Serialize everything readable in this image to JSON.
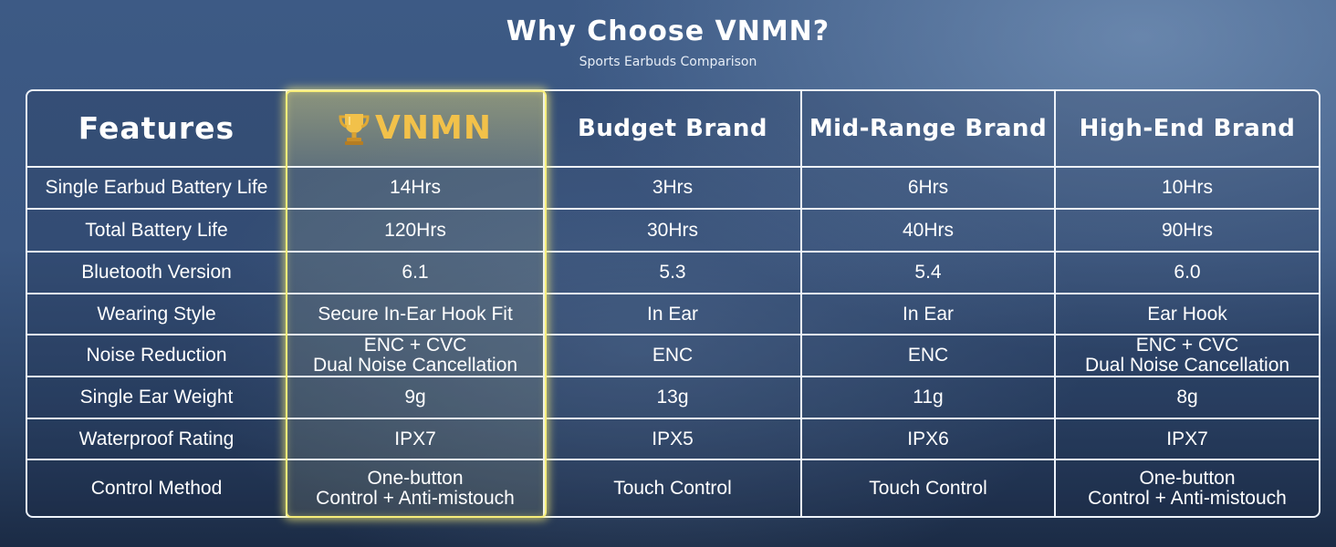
{
  "header": {
    "title": "Why Choose VNMN?",
    "subtitle": "Sports Earbuds Comparison"
  },
  "table": {
    "columns": [
      "Features",
      "VNMN",
      "Budget Brand",
      "Mid-Range Brand",
      "High-End Brand"
    ],
    "highlight_color": "#f7ee7a",
    "brand_color": "#f2c14a",
    "rows": [
      {
        "feature": "Single Earbud Battery Life",
        "vnmn": [
          "14Hrs"
        ],
        "budget": [
          "3Hrs"
        ],
        "mid": [
          "6Hrs"
        ],
        "high": [
          "10Hrs"
        ]
      },
      {
        "feature": "Total Battery Life",
        "vnmn": [
          "120Hrs"
        ],
        "budget": [
          "30Hrs"
        ],
        "mid": [
          "40Hrs"
        ],
        "high": [
          "90Hrs"
        ]
      },
      {
        "feature": "Bluetooth Version",
        "vnmn": [
          "6.1"
        ],
        "budget": [
          "5.3"
        ],
        "mid": [
          "5.4"
        ],
        "high": [
          "6.0"
        ]
      },
      {
        "feature": "Wearing Style",
        "vnmn": [
          "Secure In-Ear Hook Fit"
        ],
        "budget": [
          "In Ear"
        ],
        "mid": [
          "In Ear"
        ],
        "high": [
          "Ear Hook"
        ]
      },
      {
        "feature": "Noise Reduction",
        "vnmn": [
          "ENC + CVC",
          "Dual Noise Cancellation"
        ],
        "budget": [
          "ENC"
        ],
        "mid": [
          "ENC"
        ],
        "high": [
          "ENC + CVC",
          "Dual Noise Cancellation"
        ]
      },
      {
        "feature": "Single Ear Weight",
        "vnmn": [
          "9g"
        ],
        "budget": [
          "13g"
        ],
        "mid": [
          "11g"
        ],
        "high": [
          "8g"
        ]
      },
      {
        "feature": "Waterproof Rating",
        "vnmn": [
          "IPX7"
        ],
        "budget": [
          "IPX5"
        ],
        "mid": [
          "IPX6"
        ],
        "high": [
          "IPX7"
        ]
      },
      {
        "feature": "Control Method",
        "vnmn": [
          "One-button",
          "Control + Anti-mistouch"
        ],
        "budget": [
          "Touch Control"
        ],
        "mid": [
          "Touch Control"
        ],
        "high": [
          "One-button",
          "Control + Anti-mistouch"
        ]
      }
    ]
  }
}
